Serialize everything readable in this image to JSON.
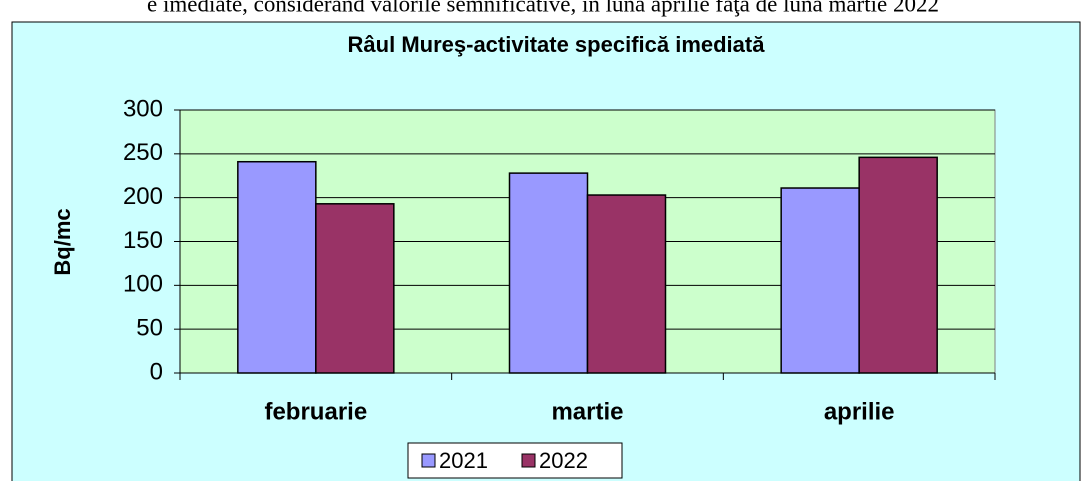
{
  "page_text": "e imediate, considerând valorile semnificative, în luna aprilie faţa de luna martie 2022",
  "chart_data": {
    "type": "bar",
    "title": "Râul Mureş-activitate specifică imediată",
    "y_label": "Bq/mc",
    "categories": [
      "februarie",
      "martie",
      "aprilie"
    ],
    "series": [
      {
        "name": "2021",
        "color": "#9999ff",
        "values": [
          241,
          228,
          211
        ]
      },
      {
        "name": "2022",
        "color": "#993366",
        "values": [
          193,
          203,
          246
        ]
      }
    ],
    "ylim": [
      0,
      300
    ],
    "yticks": [
      0,
      50,
      100,
      150,
      200,
      250,
      300
    ],
    "grid": true,
    "legend": "bottom"
  }
}
